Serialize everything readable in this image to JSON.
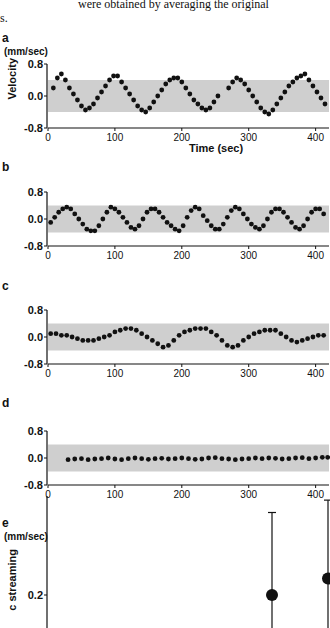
{
  "caption": [
    "were obtained by averaging the original",
    "s."
  ],
  "chart_data": [
    {
      "type": "scatter",
      "title": "a",
      "y_unit": "(mm/sec)",
      "ylabel": "Velocity",
      "xlabel": "Time (sec)",
      "xlim": [
        0,
        420
      ],
      "xticks": [
        0,
        100,
        200,
        300,
        400
      ],
      "ylim": [
        -0.8,
        0.8
      ],
      "yticks": [
        -0.8,
        {
          "value": 0,
          "label": "0.0"
        },
        0.8
      ],
      "shaded_band": [
        -0.4,
        0.4
      ],
      "marker": "circle",
      "color": "#111111",
      "x": [
        8,
        14,
        20,
        26,
        32,
        38,
        44,
        50,
        56,
        62,
        68,
        74,
        80,
        86,
        92,
        98,
        104,
        110,
        116,
        122,
        128,
        134,
        140,
        146,
        152,
        158,
        164,
        170,
        176,
        182,
        188,
        194,
        200,
        206,
        212,
        218,
        224,
        230,
        236,
        242,
        248,
        254,
        270,
        276,
        282,
        288,
        294,
        300,
        306,
        312,
        318,
        324,
        330,
        336,
        342,
        348,
        354,
        360,
        366,
        372,
        378,
        384,
        390,
        396,
        402,
        408,
        414
      ],
      "values": [
        0.2,
        0.45,
        0.55,
        0.4,
        0.2,
        0.05,
        -0.1,
        -0.25,
        -0.35,
        -0.3,
        -0.2,
        -0.05,
        0.1,
        0.25,
        0.4,
        0.5,
        0.5,
        0.35,
        0.2,
        0.05,
        -0.1,
        -0.25,
        -0.35,
        -0.4,
        -0.3,
        -0.15,
        0.0,
        0.15,
        0.3,
        0.4,
        0.45,
        0.45,
        0.35,
        0.2,
        0.05,
        -0.1,
        -0.2,
        -0.3,
        -0.35,
        -0.3,
        -0.15,
        0.0,
        0.2,
        0.35,
        0.45,
        0.4,
        0.3,
        0.15,
        0.0,
        -0.15,
        -0.3,
        -0.4,
        -0.45,
        -0.35,
        -0.2,
        -0.05,
        0.1,
        0.25,
        0.35,
        0.45,
        0.5,
        0.55,
        0.4,
        0.25,
        0.1,
        -0.05,
        -0.2
      ]
    },
    {
      "type": "scatter",
      "title": "b",
      "xlim": [
        0,
        420
      ],
      "xticks": [
        0,
        100,
        200,
        300,
        400
      ],
      "ylim": [
        -0.8,
        0.8
      ],
      "yticks": [
        -0.8,
        {
          "value": 0,
          "label": "0.0"
        },
        0.8
      ],
      "shaded_band": [
        -0.4,
        0.4
      ],
      "marker": "circle",
      "color": "#111111",
      "x": [
        4,
        10,
        16,
        22,
        28,
        34,
        40,
        46,
        52,
        58,
        64,
        70,
        76,
        82,
        88,
        94,
        100,
        106,
        112,
        118,
        124,
        130,
        136,
        142,
        148,
        154,
        160,
        166,
        172,
        178,
        184,
        190,
        196,
        202,
        208,
        214,
        220,
        226,
        232,
        238,
        244,
        250,
        256,
        262,
        268,
        274,
        280,
        286,
        292,
        298,
        304,
        310,
        316,
        322,
        328,
        334,
        340,
        346,
        352,
        358,
        364,
        370,
        376,
        382,
        388,
        394,
        400,
        406,
        412
      ],
      "values": [
        -0.1,
        0.05,
        0.2,
        0.3,
        0.35,
        0.3,
        0.15,
        0.0,
        -0.15,
        -0.3,
        -0.35,
        -0.35,
        -0.2,
        0.0,
        0.2,
        0.35,
        0.3,
        0.2,
        0.05,
        -0.1,
        -0.25,
        -0.3,
        -0.2,
        0.0,
        0.2,
        0.3,
        0.3,
        0.2,
        0.05,
        -0.1,
        -0.2,
        -0.3,
        -0.35,
        -0.2,
        0.05,
        0.25,
        0.35,
        0.3,
        0.1,
        -0.05,
        -0.2,
        -0.3,
        -0.3,
        -0.15,
        0.05,
        0.25,
        0.35,
        0.3,
        0.15,
        0.0,
        -0.15,
        -0.25,
        -0.3,
        -0.2,
        0.0,
        0.2,
        0.3,
        0.3,
        0.2,
        0.05,
        -0.1,
        -0.25,
        -0.3,
        -0.2,
        0.0,
        0.2,
        0.3,
        0.3,
        0.15
      ]
    },
    {
      "type": "scatter",
      "title": "c",
      "xlim": [
        0,
        420
      ],
      "xticks": [
        0,
        100,
        200,
        300,
        400
      ],
      "ylim": [
        -0.8,
        0.8
      ],
      "yticks": [
        -0.8,
        {
          "value": 0,
          "label": "0.0"
        },
        0.8
      ],
      "shaded_band": [
        -0.4,
        0.4
      ],
      "marker": "circle",
      "color": "#111111",
      "x": [
        4,
        12,
        20,
        28,
        36,
        44,
        52,
        60,
        68,
        76,
        84,
        92,
        100,
        108,
        116,
        124,
        132,
        140,
        148,
        156,
        164,
        172,
        180,
        188,
        196,
        204,
        212,
        220,
        228,
        236,
        244,
        252,
        260,
        268,
        276,
        284,
        292,
        300,
        308,
        316,
        324,
        332,
        340,
        348,
        356,
        364,
        372,
        380,
        388,
        396,
        404,
        412
      ],
      "values": [
        0.1,
        0.1,
        0.05,
        0.05,
        0.0,
        -0.05,
        -0.1,
        -0.1,
        -0.1,
        -0.05,
        0.0,
        0.05,
        0.15,
        0.2,
        0.25,
        0.25,
        0.2,
        0.1,
        0.0,
        -0.1,
        -0.2,
        -0.3,
        -0.25,
        -0.1,
        0.05,
        0.15,
        0.2,
        0.25,
        0.25,
        0.25,
        0.15,
        0.05,
        -0.1,
        -0.25,
        -0.3,
        -0.25,
        -0.1,
        0.0,
        0.1,
        0.15,
        0.2,
        0.2,
        0.2,
        0.1,
        0.0,
        -0.1,
        -0.15,
        -0.1,
        -0.05,
        0.0,
        0.05,
        0.05
      ]
    },
    {
      "type": "scatter",
      "title": "d",
      "xlim": [
        0,
        420
      ],
      "xticks": [
        0,
        100,
        200,
        300,
        400
      ],
      "ylim": [
        -0.8,
        0.8
      ],
      "yticks": [
        -0.8,
        {
          "value": 0,
          "label": "0.0"
        },
        0.8
      ],
      "shaded_band": [
        -0.4,
        0.4
      ],
      "marker": "circle",
      "color": "#111111",
      "x": [
        30,
        40,
        50,
        60,
        70,
        80,
        90,
        100,
        110,
        120,
        130,
        140,
        150,
        160,
        170,
        180,
        190,
        200,
        210,
        220,
        230,
        240,
        250,
        260,
        270,
        280,
        290,
        300,
        310,
        320,
        330,
        340,
        350,
        360,
        370,
        380,
        390,
        400,
        410,
        418
      ],
      "values": [
        -0.05,
        -0.03,
        -0.02,
        -0.05,
        -0.03,
        -0.02,
        0.0,
        -0.03,
        -0.05,
        -0.02,
        0.0,
        -0.02,
        -0.04,
        -0.02,
        -0.01,
        -0.03,
        -0.02,
        0.0,
        -0.02,
        -0.04,
        -0.03,
        0.0,
        0.01,
        -0.02,
        -0.03,
        -0.05,
        -0.03,
        -0.02,
        0.0,
        -0.02,
        0.0,
        -0.01,
        -0.03,
        -0.02,
        0.0,
        0.01,
        -0.02,
        0.0,
        0.02,
        0.02
      ]
    },
    {
      "type": "scatter",
      "title": "e",
      "y_unit": "(mm/sec)",
      "ylabel": "c streaming",
      "categories": [
        null,
        null,
        null,
        null,
        null
      ],
      "ylim": [
        0,
        0.32
      ],
      "yticks": [
        0.2
      ],
      "tick_labels": "y",
      "marker": "circle",
      "color": "#111111",
      "values": [
        null,
        null,
        null,
        0.2,
        0.22
      ],
      "errors": [
        null,
        null,
        null,
        0.1,
        0.095
      ]
    }
  ]
}
